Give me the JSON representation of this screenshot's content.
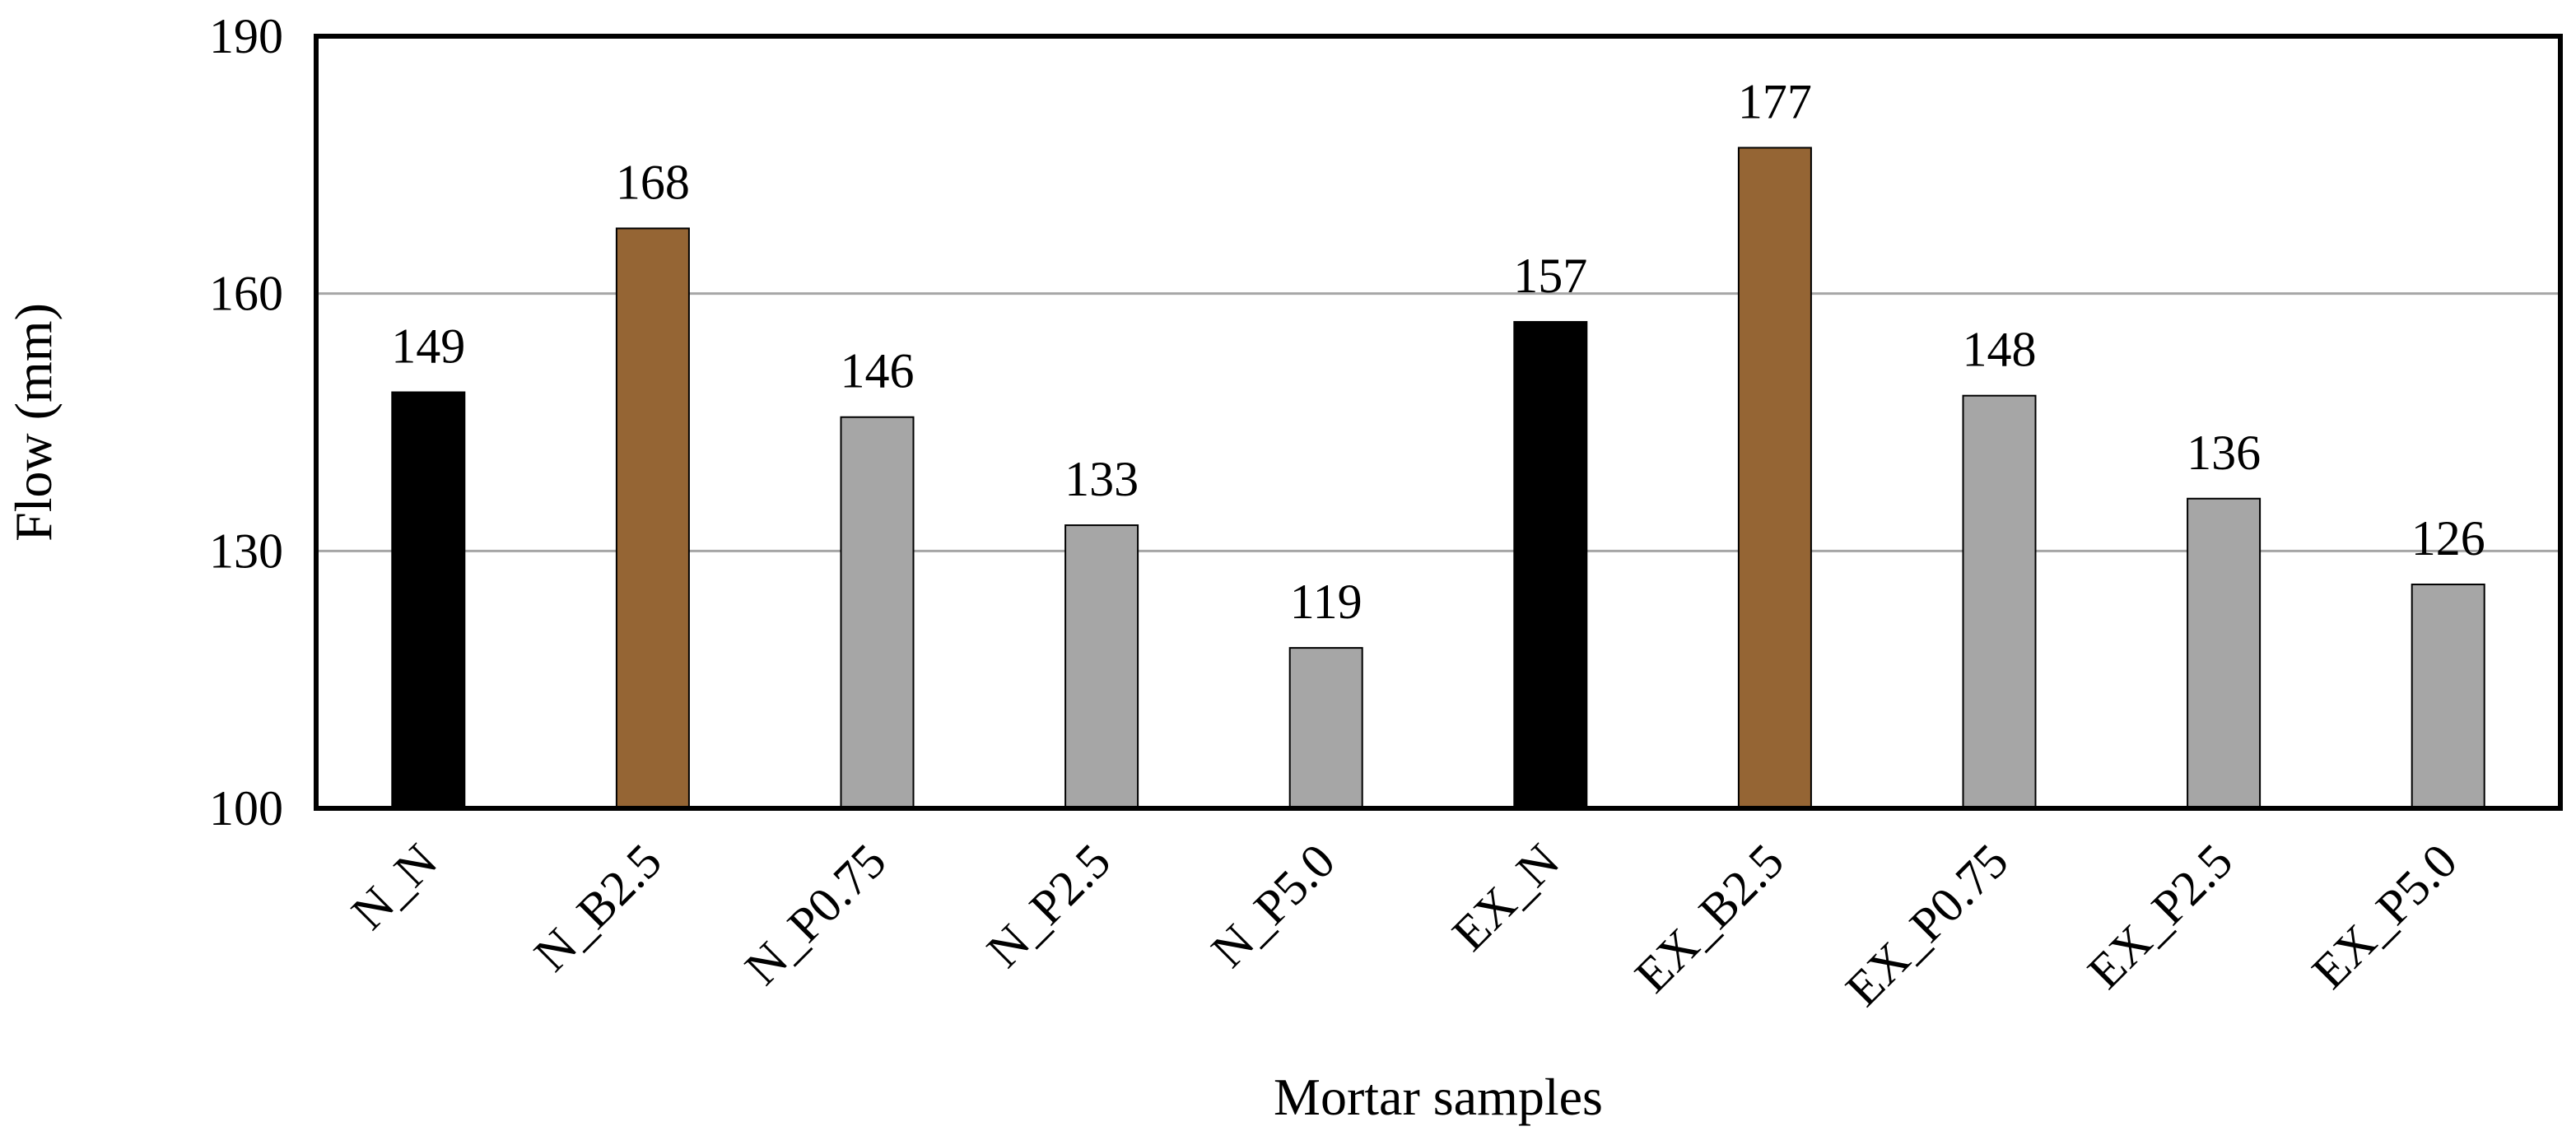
{
  "chart_data": {
    "type": "bar",
    "title": "",
    "xlabel": "Mortar samples",
    "ylabel": "Flow (mm)",
    "ylim": [
      100,
      190
    ],
    "yticks": [
      100,
      130,
      160,
      190
    ],
    "ytick_labels": [
      "100",
      "130",
      "160",
      "190"
    ],
    "grid": true,
    "legend": "none",
    "categories": [
      "N_N",
      "N_B2.5",
      "N_P0.75",
      "N_P2.5",
      "N_P5.0",
      "EX_N",
      "EX_B2.5",
      "EX_P0.75",
      "EX_P2.5",
      "EX_P5.0"
    ],
    "values": [
      149,
      168,
      146,
      133,
      119,
      157,
      177,
      148,
      136,
      126
    ],
    "value_labels": [
      "149",
      "168",
      "146",
      "133",
      "119",
      "157",
      "177",
      "148",
      "136",
      "126"
    ],
    "bar_colors": [
      "#000000",
      "#956534",
      "#a6a6a6",
      "#a6a6a6",
      "#a6a6a6",
      "#000000",
      "#956534",
      "#a6a6a6",
      "#a6a6a6",
      "#a6a6a6"
    ],
    "plotted_values": [
      148.5,
      167.6,
      145.6,
      133.0,
      118.7,
      156.7,
      177.0,
      148.1,
      136.1,
      126.1
    ]
  },
  "colors": {
    "gridline": "#a6a6a6",
    "frame": "#000000",
    "bar_outline": "#000000"
  }
}
